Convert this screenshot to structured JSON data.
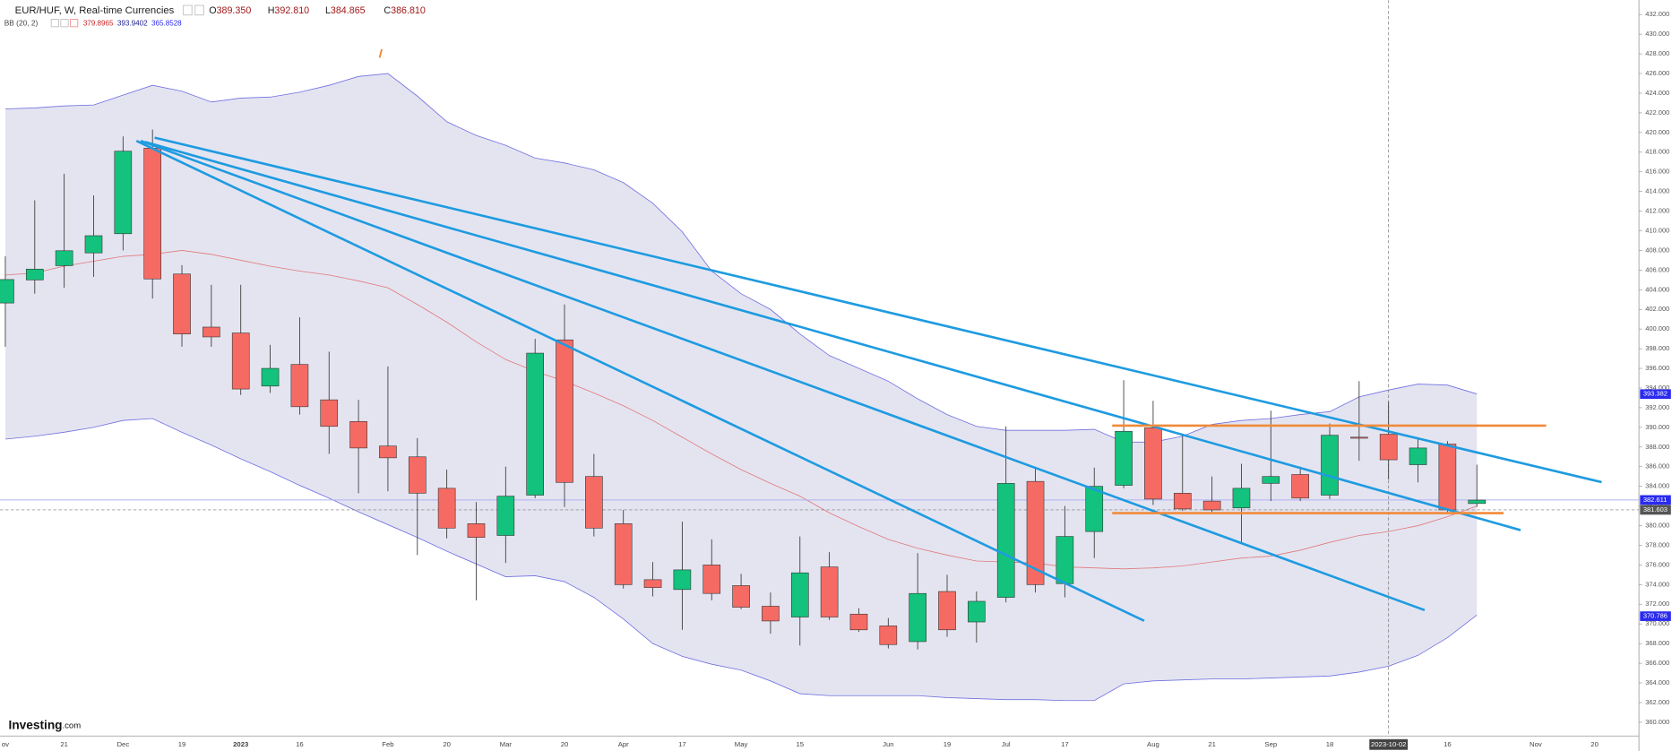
{
  "chart_data": {
    "type": "candlestick",
    "title": "EUR/HUF, W, Real-time Currencies",
    "quote": [
      {
        "name": "O",
        "value": "389.350"
      },
      {
        "name": "H",
        "value": "392.810"
      },
      {
        "name": "L",
        "value": "384.865"
      },
      {
        "name": "C",
        "value": "386.810"
      }
    ],
    "indicator": {
      "name": "BB (20, 2)",
      "readings": [
        {
          "value": "379.8965",
          "color": "#cc2222"
        },
        {
          "value": "393.9402",
          "color": "#1a1a8c"
        },
        {
          "value": "365.8528",
          "color": "#2a2aee"
        }
      ]
    },
    "source": [
      "Investing",
      ".com"
    ],
    "colors": {
      "up": "#13c27c",
      "down": "#f56b63",
      "wick": "#333333"
    },
    "grid": false,
    "categories": [
      "ov",
      null,
      "21",
      null,
      "Dec",
      null,
      "19",
      null,
      "2023",
      null,
      "16",
      null,
      null,
      "Feb",
      null,
      "20",
      null,
      "Mar",
      null,
      "20",
      null,
      "Apr",
      null,
      "17",
      null,
      "May",
      null,
      "15",
      null,
      null,
      "Jun",
      null,
      "19",
      null,
      "Jul",
      null,
      "17",
      null,
      null,
      "Aug",
      null,
      "21",
      null,
      "Sep",
      null,
      "18",
      null,
      "2023-10-02",
      null,
      "16",
      null,
      null,
      "Nov",
      null,
      "20"
    ],
    "highlight_category": "2023-10-02",
    "open": [
      402.65,
      405.0,
      406.45,
      407.75,
      409.7,
      418.4,
      405.6,
      400.2,
      399.6,
      394.2,
      396.4,
      392.8,
      390.6,
      388.1,
      387.0,
      383.8,
      380.2,
      379.0,
      383.1,
      398.9,
      385.0,
      380.2,
      374.5,
      373.5,
      376.0,
      373.9,
      371.8,
      370.7,
      375.8,
      371.0,
      369.8,
      368.2,
      373.3,
      370.2,
      372.7,
      384.5,
      374.1,
      379.4,
      384.1,
      389.95,
      383.3,
      382.5,
      381.8,
      384.3,
      385.2,
      383.1,
      389.0,
      389.3,
      386.2,
      388.3,
      382.25,
      null,
      null,
      null,
      null
    ],
    "high": [
      407.4,
      413.1,
      415.8,
      413.6,
      419.6,
      420.3,
      406.5,
      404.5,
      404.5,
      398.4,
      401.2,
      397.7,
      392.8,
      396.2,
      388.9,
      385.7,
      382.4,
      386.0,
      399.0,
      402.5,
      387.3,
      381.6,
      376.3,
      380.4,
      378.6,
      375.1,
      373.2,
      378.9,
      377.3,
      371.6,
      370.6,
      377.2,
      375.0,
      373.3,
      390.1,
      386.0,
      382.0,
      385.9,
      394.8,
      392.7,
      389.2,
      385.0,
      386.3,
      391.7,
      386.0,
      390.4,
      394.7,
      392.6,
      389.0,
      388.6,
      386.2,
      null,
      null,
      null,
      null
    ],
    "low": [
      398.2,
      403.6,
      404.2,
      405.3,
      408.0,
      403.1,
      398.2,
      398.2,
      393.3,
      393.5,
      391.3,
      387.3,
      383.3,
      383.5,
      377.0,
      378.7,
      372.4,
      376.2,
      382.8,
      381.9,
      378.9,
      373.6,
      372.8,
      369.4,
      372.4,
      371.5,
      369.0,
      367.8,
      370.4,
      369.2,
      367.5,
      367.4,
      368.7,
      368.1,
      372.2,
      373.2,
      372.7,
      376.7,
      383.8,
      382.1,
      381.5,
      381.4,
      378.3,
      382.5,
      382.5,
      382.7,
      386.6,
      384.7,
      384.4,
      381.3,
      381.9,
      null,
      null,
      null,
      null
    ],
    "close": [
      405.04,
      406.1,
      407.97,
      409.5,
      418.1,
      405.1,
      399.5,
      399.2,
      393.9,
      396.0,
      392.1,
      390.1,
      387.9,
      386.9,
      383.3,
      379.75,
      378.8,
      383.0,
      397.55,
      384.4,
      379.75,
      374.0,
      373.7,
      375.5,
      373.1,
      371.7,
      370.3,
      375.2,
      370.7,
      369.4,
      367.9,
      373.1,
      369.4,
      372.3,
      384.3,
      374.0,
      378.9,
      384.0,
      389.6,
      382.7,
      381.7,
      381.6,
      383.8,
      385.0,
      382.8,
      389.2,
      388.9,
      386.7,
      387.9,
      381.6,
      382.6,
      null,
      null,
      null,
      null
    ],
    "overlays": {
      "fill": "#e4e4f1",
      "upper": {
        "color": "#7070e0",
        "values": [
          422.4,
          422.5,
          422.7,
          422.8,
          423.8,
          424.8,
          424.2,
          423.1,
          423.5,
          423.6,
          424.1,
          424.8,
          425.7,
          426.0,
          423.7,
          421.1,
          419.7,
          418.7,
          417.4,
          416.9,
          416.2,
          414.9,
          412.8,
          409.9,
          405.9,
          403.6,
          402.0,
          399.5,
          397.3,
          396.0,
          394.7,
          392.9,
          391.3,
          390.1,
          389.7,
          389.7,
          389.7,
          389.8,
          388.5,
          388.5,
          389.1,
          390.3,
          390.7,
          390.9,
          391.3,
          391.6,
          393.1,
          393.8,
          394.4,
          394.3,
          393.4,
          null,
          null,
          null,
          null
        ]
      },
      "middle": {
        "color": "#e07a7a",
        "values": [
          405.5,
          405.7,
          406.4,
          406.9,
          407.4,
          407.6,
          408.0,
          407.6,
          407.0,
          406.4,
          405.9,
          405.5,
          404.9,
          404.2,
          402.5,
          400.7,
          398.7,
          396.9,
          395.7,
          394.7,
          393.5,
          392.2,
          390.7,
          389.0,
          387.3,
          385.7,
          384.3,
          383.0,
          381.3,
          379.9,
          378.6,
          377.7,
          377.0,
          376.4,
          376.3,
          376.2,
          375.8,
          375.7,
          375.6,
          375.7,
          375.9,
          376.3,
          376.7,
          376.9,
          377.5,
          378.3,
          379.0,
          379.4,
          380.0,
          380.9,
          382.0,
          null,
          null,
          null,
          null
        ]
      },
      "lower": {
        "color": "#7070e0",
        "values": [
          388.8,
          389.1,
          389.5,
          390.0,
          390.7,
          390.9,
          389.5,
          388.2,
          386.8,
          385.5,
          384.1,
          382.8,
          381.4,
          380.1,
          378.8,
          377.4,
          376.1,
          374.8,
          374.9,
          374.3,
          372.7,
          370.5,
          368.0,
          366.7,
          365.9,
          365.3,
          364.2,
          362.9,
          362.7,
          362.7,
          362.7,
          362.7,
          362.5,
          362.4,
          362.3,
          362.3,
          362.2,
          362.2,
          363.9,
          364.2,
          364.3,
          364.4,
          364.4,
          364.5,
          364.6,
          364.7,
          365.1,
          365.7,
          366.8,
          368.6,
          370.9,
          null,
          null,
          null,
          null
        ]
      }
    },
    "ylim": [
      358.6,
      433.47
    ],
    "yticks": [
      {
        "value": 360,
        "label": "360.000"
      },
      {
        "value": 362,
        "label": "362.000"
      },
      {
        "value": 364,
        "label": "364.000"
      },
      {
        "value": 366,
        "label": "366.000"
      },
      {
        "value": 368,
        "label": "368.000"
      },
      {
        "value": 370,
        "label": "370.000"
      },
      {
        "value": 372,
        "label": "372.000"
      },
      {
        "value": 374,
        "label": "374.000"
      },
      {
        "value": 376,
        "label": "376.000"
      },
      {
        "value": 378,
        "label": "378.000"
      },
      {
        "value": 380,
        "label": "380.000"
      },
      {
        "value": 382,
        "label": "382.000"
      },
      {
        "value": 384,
        "label": "384.000"
      },
      {
        "value": 386,
        "label": "386.000"
      },
      {
        "value": 388,
        "label": "388.000"
      },
      {
        "value": 390,
        "label": "390.000"
      },
      {
        "value": 392,
        "label": "392.000"
      },
      {
        "value": 394,
        "label": "394.000"
      },
      {
        "value": 396,
        "label": "396.000"
      },
      {
        "value": 398,
        "label": "398.000"
      },
      {
        "value": 400,
        "label": "400.000"
      },
      {
        "value": 402,
        "label": "402.000"
      },
      {
        "value": 404,
        "label": "404.000"
      },
      {
        "value": 406,
        "label": "406.000"
      },
      {
        "value": 408,
        "label": "408.000"
      },
      {
        "value": 410,
        "label": "410.000"
      },
      {
        "value": 412,
        "label": "412.000"
      },
      {
        "value": 414,
        "label": "414.000"
      },
      {
        "value": 416,
        "label": "416.000"
      },
      {
        "value": 418,
        "label": "418.000"
      },
      {
        "value": 420,
        "label": "420.000"
      },
      {
        "value": 422,
        "label": "422.000"
      },
      {
        "value": 424,
        "label": "424.000"
      },
      {
        "value": 426,
        "label": "426.000"
      },
      {
        "value": 428,
        "label": "428.000"
      },
      {
        "value": 430,
        "label": "430.000"
      },
      {
        "value": 432,
        "label": "432.000"
      }
    ],
    "price_labels": [
      {
        "value": 393.382,
        "label": "393.382",
        "color": "#2a2aee",
        "line": "none"
      },
      {
        "value": 382.611,
        "label": "382.611",
        "color": "#2a2aee",
        "line": "solid"
      },
      {
        "value": 381.603,
        "label": "381.603",
        "color": "#555555",
        "line": "dashed"
      },
      {
        "value": 370.786,
        "label": "370.786",
        "color": "#2a2aee",
        "line": "none"
      }
    ]
  }
}
